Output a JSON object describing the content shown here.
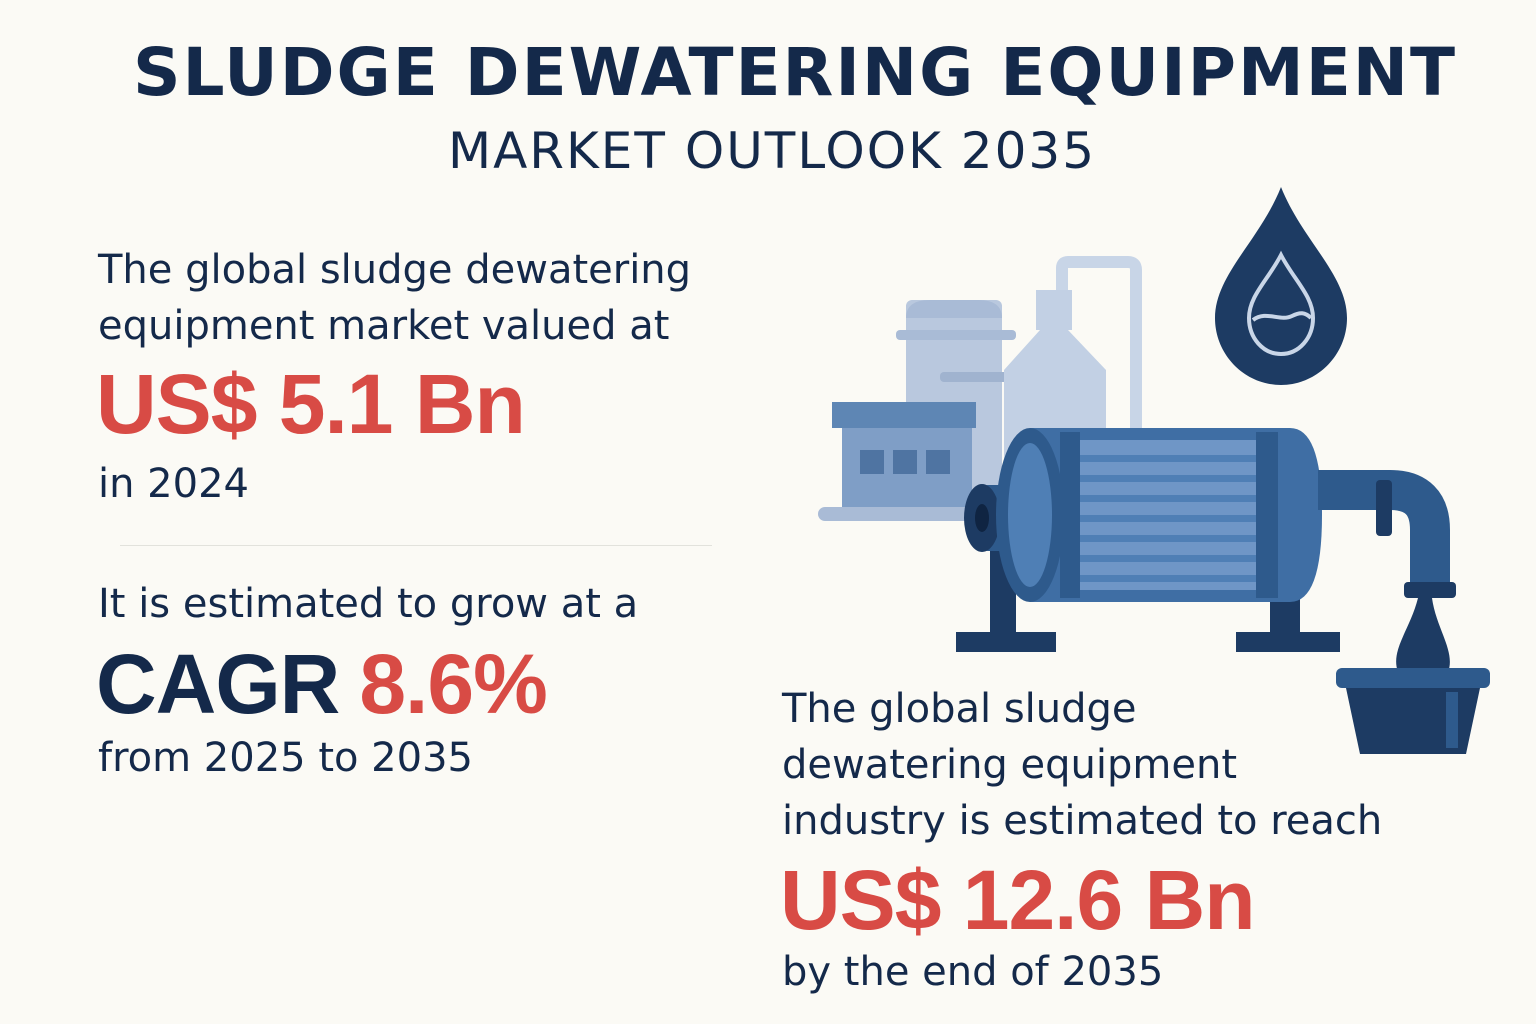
{
  "header": {
    "title": "SLUDGE DEWATERING EQUIPMENT",
    "subtitle": "MARKET OUTLOOK 2035"
  },
  "stat_current": {
    "intro_line1": "The global sludge dewatering",
    "intro_line2": "equipment market valued at",
    "value": "US$ 5.1 Bn",
    "period": "in 2024"
  },
  "stat_growth": {
    "intro": "It is estimated to grow at a",
    "label": "CAGR",
    "value": "8.6%",
    "period": "from 2025 to 2035"
  },
  "stat_forecast": {
    "intro_line1": "The global sludge",
    "intro_line2": "dewatering equipment",
    "intro_line3": "industry is estimated to reach",
    "value": "US$ 12.6 Bn",
    "period": "by the end of 2035"
  },
  "colors": {
    "navy": "#14294a",
    "accent_red": "#d84b45",
    "background": "#fbfaf5",
    "steel_blue": "#4f79a8",
    "light_blue": "#b9c8de"
  },
  "icons": [
    "water-drop-icon",
    "dewatering-machine-illustration",
    "factory-tanks-illustration",
    "sludge-tray-icon"
  ]
}
